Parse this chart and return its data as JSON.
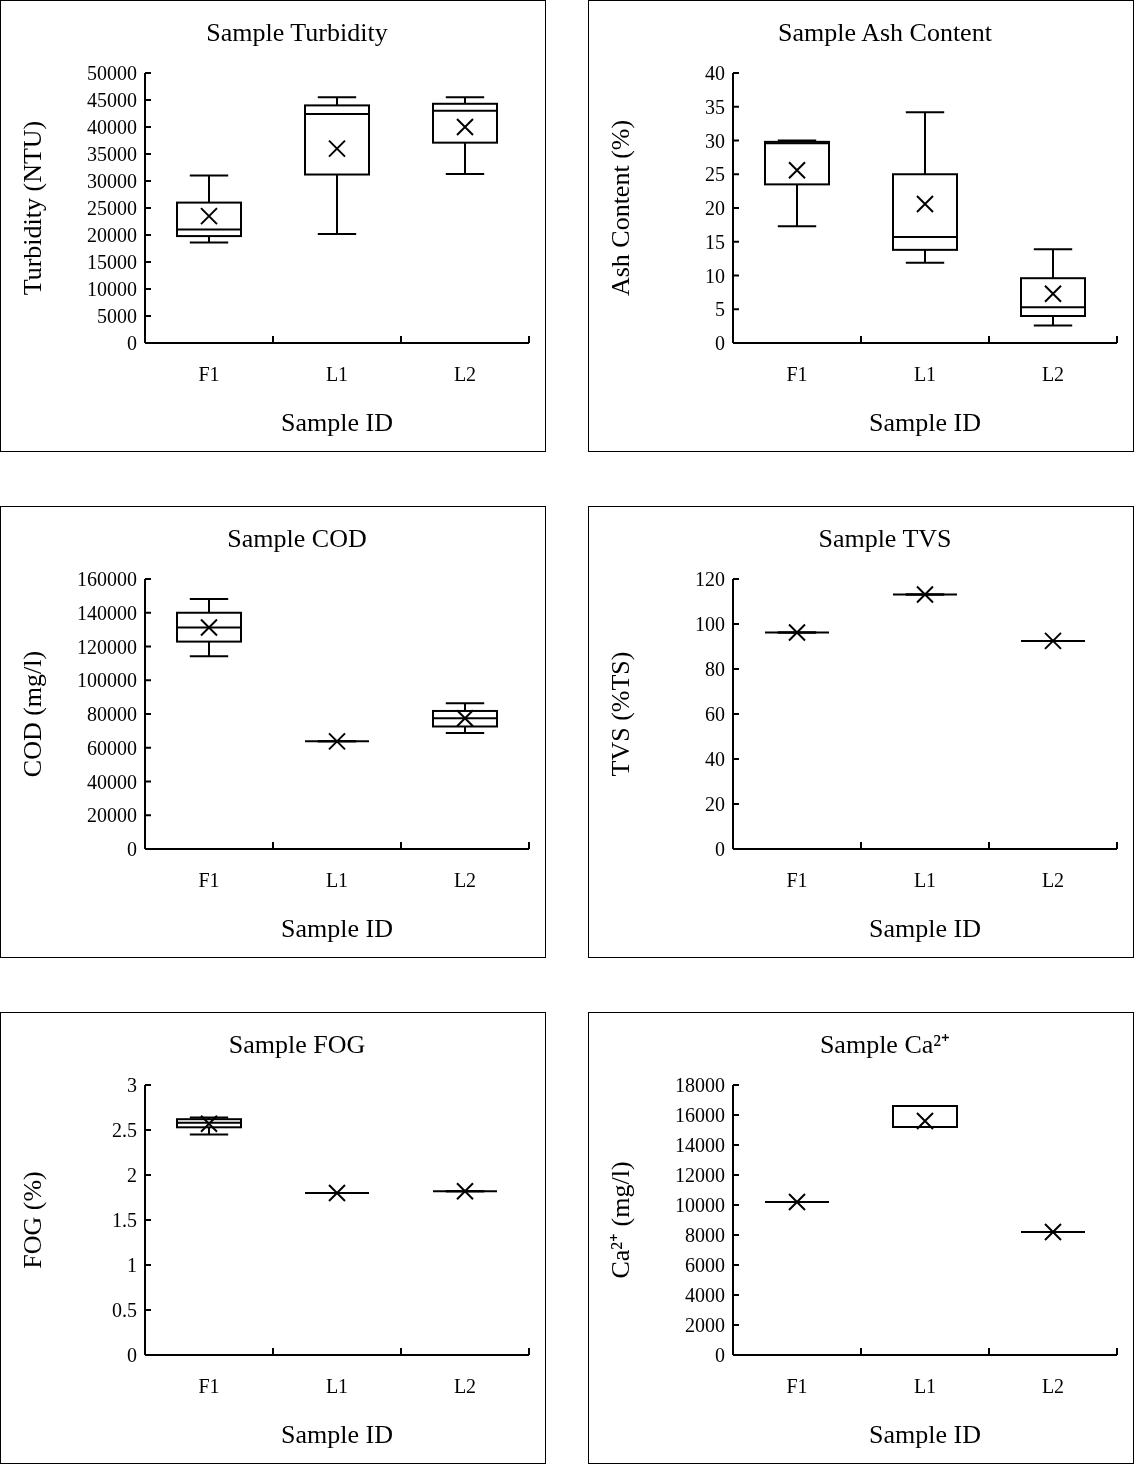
{
  "chart_data": [
    {
      "type": "box",
      "title": "Sample Turbidity",
      "xlabel": "Sample ID",
      "ylabel": "Turbidity (NTU)",
      "categories": [
        "F1",
        "L1",
        "L2"
      ],
      "color": "#000000",
      "ylim": [
        0,
        50000
      ],
      "yticks": [
        0,
        5000,
        10000,
        15000,
        20000,
        25000,
        30000,
        35000,
        40000,
        45000,
        50000
      ],
      "grid": false,
      "boxes": [
        {
          "low": 18600,
          "q1": 19800,
          "median": 21000,
          "q3": 26000,
          "high": 31000,
          "mean": 23500
        },
        {
          "low": 20200,
          "q1": 31200,
          "median": 42400,
          "q3": 44000,
          "high": 45500,
          "mean": 36000
        },
        {
          "low": 31300,
          "q1": 37100,
          "median": 43000,
          "q3": 44300,
          "high": 45500,
          "mean": 40000
        }
      ]
    },
    {
      "type": "box",
      "title": "Sample Ash Content",
      "xlabel": "Sample ID",
      "ylabel": "Ash Content (%)",
      "categories": [
        "F1",
        "L1",
        "L2"
      ],
      "color": "#000000",
      "ylim": [
        0,
        40
      ],
      "yticks": [
        0,
        5,
        10,
        15,
        20,
        25,
        30,
        35,
        40
      ],
      "grid": false,
      "boxes": [
        {
          "low": 17.3,
          "q1": 23.5,
          "median": 29.6,
          "q3": 29.8,
          "high": 30,
          "mean": 25.6
        },
        {
          "low": 11.9,
          "q1": 13.8,
          "median": 15.7,
          "q3": 25,
          "high": 34.2,
          "mean": 20.6
        },
        {
          "low": 2.6,
          "q1": 4,
          "median": 5.3,
          "q3": 9.6,
          "high": 13.9,
          "mean": 7.3
        }
      ]
    },
    {
      "type": "box",
      "title": "Sample COD",
      "xlabel": "Sample ID",
      "ylabel": "COD (mg/l)",
      "categories": [
        "F1",
        "L1",
        "L2"
      ],
      "color": "#000000",
      "ylim": [
        0,
        160000
      ],
      "yticks": [
        0,
        20000,
        40000,
        60000,
        80000,
        100000,
        120000,
        140000,
        160000
      ],
      "grid": false,
      "boxes": [
        {
          "low": 114200,
          "q1": 122900,
          "median": 131300,
          "q3": 140000,
          "high": 148200,
          "mean": 131300
        },
        {
          "low": 63800,
          "q1": 63800,
          "median": 63800,
          "q3": 63800,
          "high": 63800,
          "mean": 63800
        },
        {
          "low": 68700,
          "q1": 72600,
          "median": 77500,
          "q3": 81800,
          "high": 86400,
          "mean": 77500
        }
      ]
    },
    {
      "type": "box",
      "title": "Sample TVS",
      "xlabel": "Sample ID",
      "ylabel": "TVS (%TS)",
      "categories": [
        "F1",
        "L1",
        "L2"
      ],
      "color": "#000000",
      "ylim": [
        0,
        120
      ],
      "yticks": [
        0,
        20,
        40,
        60,
        80,
        100,
        120
      ],
      "grid": false,
      "boxes": [
        {
          "low": 96.2,
          "q1": 96.2,
          "median": 96.2,
          "q3": 96.2,
          "high": 96.2,
          "mean": 96.2
        },
        {
          "low": 113.1,
          "q1": 113.1,
          "median": 113.1,
          "q3": 113.1,
          "high": 113.1,
          "mean": 113.1
        },
        {
          "low": 92.5,
          "q1": 92.5,
          "median": 92.5,
          "q3": 92.5,
          "high": 92.5,
          "mean": 92.5
        }
      ]
    },
    {
      "type": "box",
      "title": "Sample FOG",
      "xlabel": "Sample ID",
      "ylabel": "FOG (%)",
      "categories": [
        "F1",
        "L1",
        "L2"
      ],
      "color": "#000000",
      "ylim": [
        0,
        3
      ],
      "yticks": [
        0,
        0.5,
        1,
        1.5,
        2,
        2.5,
        3
      ],
      "grid": false,
      "boxes": [
        {
          "low": 2.45,
          "q1": 2.53,
          "median": 2.58,
          "q3": 2.62,
          "high": 2.64,
          "mean": 2.57
        },
        {
          "low": 1.8,
          "q1": 1.8,
          "median": 1.8,
          "q3": 1.8,
          "high": 1.8,
          "mean": 1.8
        },
        {
          "low": 1.82,
          "q1": 1.82,
          "median": 1.82,
          "q3": 1.82,
          "high": 1.82,
          "mean": 1.82
        }
      ]
    },
    {
      "type": "box",
      "title": "Sample Ca²⁺",
      "xlabel": "Sample ID",
      "ylabel": "Ca²⁺ (mg/l)",
      "categories": [
        "F1",
        "L1",
        "L2"
      ],
      "color": "#000000",
      "ylim": [
        0,
        18000
      ],
      "yticks": [
        0,
        2000,
        4000,
        6000,
        8000,
        10000,
        12000,
        14000,
        16000,
        18000
      ],
      "grid": false,
      "boxes": [
        {
          "low": 10200,
          "q1": 10200,
          "median": 10200,
          "q3": 10200,
          "high": 10200,
          "mean": 10200
        },
        {
          "low": 15200,
          "q1": 15200,
          "median": 15200,
          "q3": 16600,
          "high": 16600,
          "mean": 15600
        },
        {
          "low": 8200,
          "q1": 8200,
          "median": 8200,
          "q3": 8200,
          "high": 8200,
          "mean": 8200
        }
      ]
    }
  ]
}
